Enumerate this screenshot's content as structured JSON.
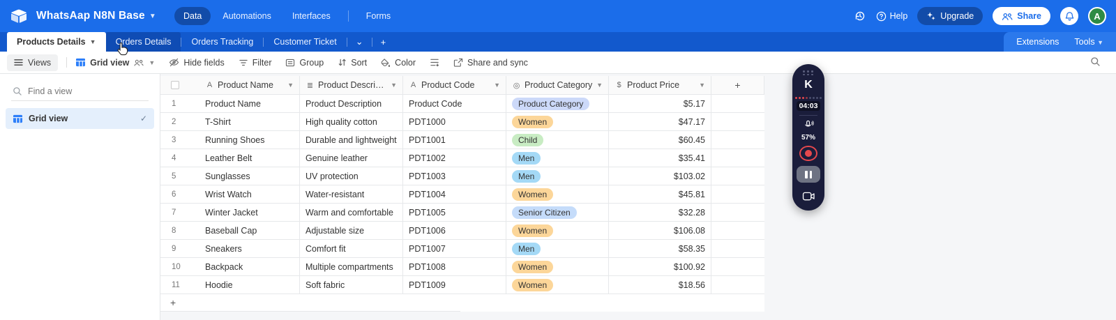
{
  "topbar": {
    "title": "WhatsAap N8N Base",
    "nav": [
      {
        "label": "Data",
        "active": true
      },
      {
        "label": "Automations",
        "active": false
      },
      {
        "label": "Interfaces",
        "active": false
      },
      {
        "label": "Forms",
        "active": false,
        "divider_before": true
      }
    ],
    "help_label": "Help",
    "upgrade_label": "Upgrade",
    "share_label": "Share",
    "avatar_initial": "A"
  },
  "tabbar": {
    "tabs": [
      {
        "label": "Products Details",
        "active": true,
        "has_chevron": true
      },
      {
        "label": "Orders Details",
        "hover": true
      },
      {
        "label": "Orders Tracking"
      },
      {
        "label": "Customer Ticket"
      }
    ],
    "extensions_label": "Extensions",
    "tools_label": "Tools"
  },
  "toolbar": {
    "views_label": "Views",
    "view_name": "Grid view",
    "items": [
      {
        "label": "Hide fields",
        "icon": "eye-off"
      },
      {
        "label": "Filter",
        "icon": "funnel"
      },
      {
        "label": "Group",
        "icon": "group-box"
      },
      {
        "label": "Sort",
        "icon": "sort-arrows"
      },
      {
        "label": "Color",
        "icon": "paint"
      },
      {
        "label": "",
        "icon": "row-height"
      },
      {
        "label": "Share and sync",
        "icon": "share-box"
      }
    ]
  },
  "sidebar": {
    "search_placeholder": "Find a view",
    "items": [
      {
        "label": "Grid view",
        "selected": true
      }
    ]
  },
  "table": {
    "columns": [
      {
        "label": "Product Name",
        "type": "text"
      },
      {
        "label": "Product Description",
        "type": "long-text"
      },
      {
        "label": "Product Code",
        "type": "text"
      },
      {
        "label": "Product Category",
        "type": "select"
      },
      {
        "label": "Product Price",
        "type": "currency"
      }
    ],
    "rows": [
      {
        "num": 1,
        "name": "Product Name",
        "description": "Product Description",
        "code": "Product Code",
        "category": "Product Category",
        "price": "$5.17"
      },
      {
        "num": 2,
        "name": "T-Shirt",
        "description": "High quality cotton",
        "code": "PDT1000",
        "category": "Women",
        "price": "$47.17"
      },
      {
        "num": 3,
        "name": "Running Shoes",
        "description": "Durable and lightweight",
        "code": "PDT1001",
        "category": "Child",
        "price": "$60.45"
      },
      {
        "num": 4,
        "name": "Leather Belt",
        "description": "Genuine leather",
        "code": "PDT1002",
        "category": "Men",
        "price": "$35.41"
      },
      {
        "num": 5,
        "name": "Sunglasses",
        "description": "UV protection",
        "code": "PDT1003",
        "category": "Men",
        "price": "$103.02"
      },
      {
        "num": 6,
        "name": "Wrist Watch",
        "description": "Water-resistant",
        "code": "PDT1004",
        "category": "Women",
        "price": "$45.81"
      },
      {
        "num": 7,
        "name": "Winter Jacket",
        "description": "Warm and comfortable",
        "code": "PDT1005",
        "category": "Senior Citizen",
        "price": "$32.28"
      },
      {
        "num": 8,
        "name": "Baseball Cap",
        "description": "Adjustable size",
        "code": "PDT1006",
        "category": "Women",
        "price": "$106.08"
      },
      {
        "num": 9,
        "name": "Sneakers",
        "description": "Comfort fit",
        "code": "PDT1007",
        "category": "Men",
        "price": "$58.35"
      },
      {
        "num": 10,
        "name": "Backpack",
        "description": "Multiple compartments",
        "code": "PDT1008",
        "category": "Women",
        "price": "$100.92"
      },
      {
        "num": 11,
        "name": "Hoodie",
        "description": "Soft fabric",
        "code": "PDT1009",
        "category": "Women",
        "price": "$18.56"
      }
    ],
    "badge_colors": {
      "Product Category": "#ccd9f9",
      "Women": "#fcd699",
      "Child": "#c8ecc3",
      "Men": "#a4d9f6",
      "Senior Citizen": "#c5dcfa"
    }
  },
  "recorder": {
    "logo": "K",
    "timer": "04:03",
    "mic_level": "57%",
    "level_dots_active": 4,
    "level_dots_total": 8,
    "colors": {
      "bg": "#1a1d3b",
      "record_red": "#e5484d",
      "pause_gray": "#6e7383"
    }
  },
  "colors": {
    "topbar_blue": "#1b6dea",
    "tabstrip_blue": "#1259cd",
    "accent_blue": "#2d7ff9",
    "avatar_green": "#2e8b44"
  }
}
